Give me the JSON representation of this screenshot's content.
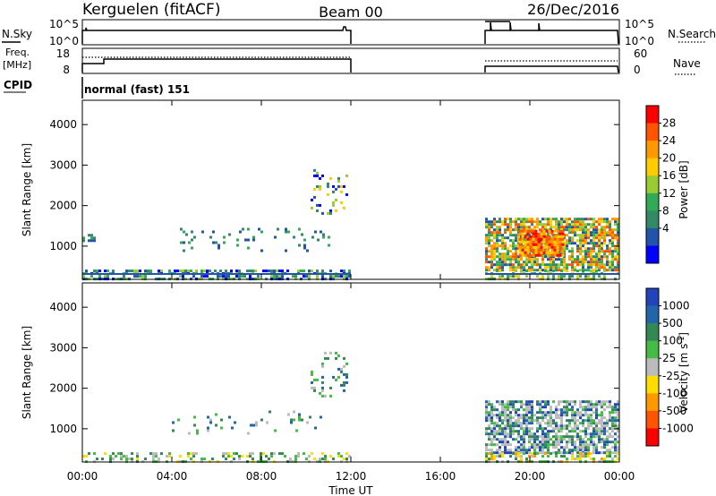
{
  "header": {
    "station": "Kerguelen (fitACF)",
    "beam": "Beam 00",
    "date": "26/Dec/2016"
  },
  "status_panels": {
    "nsky_label": "N.Sky",
    "nsearch_label": "N.Search",
    "freq_label_line1": "Freq.",
    "freq_label_line2": "[MHz]",
    "nave_label": "Nave",
    "cpid_label": "CPID",
    "cpid_value": "normal (fast) 151",
    "nsky_ticks": [
      "10^5",
      "10^0"
    ],
    "nsearch_ticks": [
      "10^5",
      "10^0"
    ],
    "freq_ticks": [
      "18",
      "8"
    ],
    "nave_ticks": [
      "60",
      "0"
    ]
  },
  "chart_data": [
    {
      "type": "heatmap",
      "name": "power",
      "ylabel": "Slant Range [km]",
      "xlabel": "",
      "y_ticks": [
        "4000",
        "3000",
        "2000",
        "1000"
      ],
      "y_range": [
        180,
        4600
      ],
      "x_range_hours": [
        0,
        24
      ],
      "colorbar_label": "Power [dB]",
      "colorbar_ticks": [
        "28",
        "24",
        "20",
        "16",
        "12",
        "8",
        "4"
      ],
      "colorbar_colors": [
        "#ff0000",
        "#ff5500",
        "#ff9900",
        "#ffcc00",
        "#99cc33",
        "#33aa55",
        "#338866",
        "#2255aa",
        "#0000ff"
      ],
      "data_gap_hours": [
        12.0,
        18.0
      ],
      "scatter_regions": [
        {
          "t0": 0.0,
          "t1": 12.0,
          "r0": 180,
          "r1": 420,
          "density": 0.55,
          "levels": [
            0,
            1,
            2,
            3,
            4
          ]
        },
        {
          "t0": 0.0,
          "t1": 0.6,
          "r0": 1100,
          "r1": 1300,
          "density": 0.5,
          "levels": [
            1,
            2,
            3
          ]
        },
        {
          "t0": 4.0,
          "t1": 11.0,
          "r0": 900,
          "r1": 1450,
          "density": 0.1,
          "levels": [
            1,
            2,
            3
          ]
        },
        {
          "t0": 10.2,
          "t1": 11.8,
          "r0": 1800,
          "r1": 2900,
          "density": 0.18,
          "levels": [
            0,
            1,
            2,
            4,
            5
          ]
        },
        {
          "t0": 18.0,
          "t1": 24.0,
          "r0": 400,
          "r1": 1700,
          "density": 0.75,
          "levels": [
            1,
            2,
            3,
            4,
            5,
            6,
            7
          ]
        },
        {
          "t0": 18.0,
          "t1": 24.0,
          "r0": 180,
          "r1": 420,
          "density": 0.45,
          "levels": [
            2,
            3,
            4,
            5
          ]
        },
        {
          "t0": 19.5,
          "t1": 21.5,
          "r0": 800,
          "r1": 1400,
          "density": 0.85,
          "levels": [
            5,
            6,
            7,
            8
          ]
        }
      ]
    },
    {
      "type": "heatmap",
      "name": "velocity",
      "ylabel": "Slant Range [km]",
      "xlabel": "Time UT",
      "y_ticks": [
        "4000",
        "3000",
        "2000",
        "1000"
      ],
      "y_range": [
        180,
        4600
      ],
      "x_range_hours": [
        0,
        24
      ],
      "x_ticks": [
        "00:00",
        "04:00",
        "08:00",
        "12:00",
        "16:00",
        "20:00",
        "00:00"
      ],
      "colorbar_label": "Velocity [m s^-1]",
      "colorbar_ticks": [
        "1000",
        "500",
        "100",
        "25",
        "-25",
        "-100",
        "-500",
        "-1000"
      ],
      "colorbar_colors": [
        "#2244bb",
        "#2266aa",
        "#338855",
        "#44bb44",
        "#bbbbbb",
        "#ffdd00",
        "#ff9900",
        "#ff5500",
        "#ff0000"
      ],
      "data_gap_hours": [
        12.0,
        18.0
      ],
      "scatter_regions": [
        {
          "t0": 0.0,
          "t1": 12.0,
          "r0": 180,
          "r1": 420,
          "density": 0.4,
          "levels": [
            3,
            4,
            5,
            6
          ]
        },
        {
          "t0": 4.0,
          "t1": 11.0,
          "r0": 900,
          "r1": 1450,
          "density": 0.08,
          "levels": [
            4,
            5,
            6,
            7
          ]
        },
        {
          "t0": 10.2,
          "t1": 11.8,
          "r0": 1800,
          "r1": 2900,
          "density": 0.15,
          "levels": [
            4,
            5,
            6,
            7
          ]
        },
        {
          "t0": 18.0,
          "t1": 24.0,
          "r0": 400,
          "r1": 1700,
          "density": 0.7,
          "levels": [
            4,
            4,
            4,
            5,
            6,
            7,
            8
          ]
        },
        {
          "t0": 18.0,
          "t1": 24.0,
          "r0": 180,
          "r1": 420,
          "density": 0.45,
          "levels": [
            2,
            3,
            4,
            5,
            6
          ]
        }
      ]
    }
  ]
}
